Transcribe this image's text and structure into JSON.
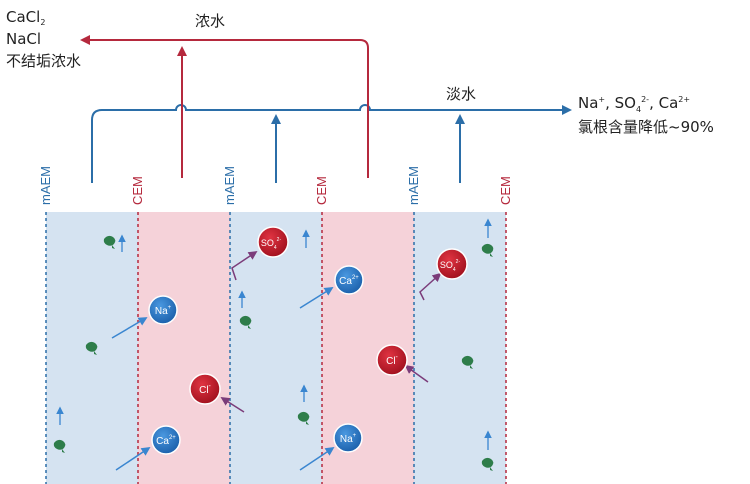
{
  "concentrate": {
    "label": "浓水",
    "outlet_species": [
      "CaCl",
      "NaCl"
    ],
    "outlet_subscripts": [
      "2",
      ""
    ],
    "outlet_note": "不结垢浓水"
  },
  "dilute": {
    "label": "淡水",
    "outlet_parts": [
      "Na",
      "+",
      ", SO",
      "4",
      "2-",
      ", Ca",
      "2+"
    ],
    "outlet_note": "氯根含量降低~90%"
  },
  "membranes": [
    "mAEM",
    "CEM",
    "mAEM",
    "CEM",
    "mAEM",
    "CEM"
  ],
  "ions": [
    {
      "id": "na-1",
      "label": "Na",
      "charge": "+",
      "type": "cation"
    },
    {
      "id": "ca-1",
      "label": "Ca",
      "charge": "2+",
      "type": "cation"
    },
    {
      "id": "cl-1",
      "label": "Cl",
      "charge": "-",
      "type": "anion"
    },
    {
      "id": "so4-1",
      "label": "SO",
      "sub": "4",
      "charge": "2-",
      "type": "anion"
    },
    {
      "id": "ca-2",
      "label": "Ca",
      "charge": "2+",
      "type": "cation"
    },
    {
      "id": "na-2",
      "label": "Na",
      "charge": "+",
      "type": "cation"
    },
    {
      "id": "cl-2",
      "label": "Cl",
      "charge": "-",
      "type": "anion"
    },
    {
      "id": "so4-2",
      "label": "SO",
      "sub": "4",
      "charge": "2-",
      "type": "anion"
    }
  ],
  "colors": {
    "dilute_fill": "#d5e3f1",
    "concentrate_fill": "#f5d2d9",
    "blue_line": "#2b6ea8",
    "red_line": "#b5293d",
    "cation_ball": "#2a78c8",
    "anion_ball": "#c11b2a",
    "purple_arrow": "#7b3c7a",
    "organic_icon": "#2e7d4a"
  }
}
